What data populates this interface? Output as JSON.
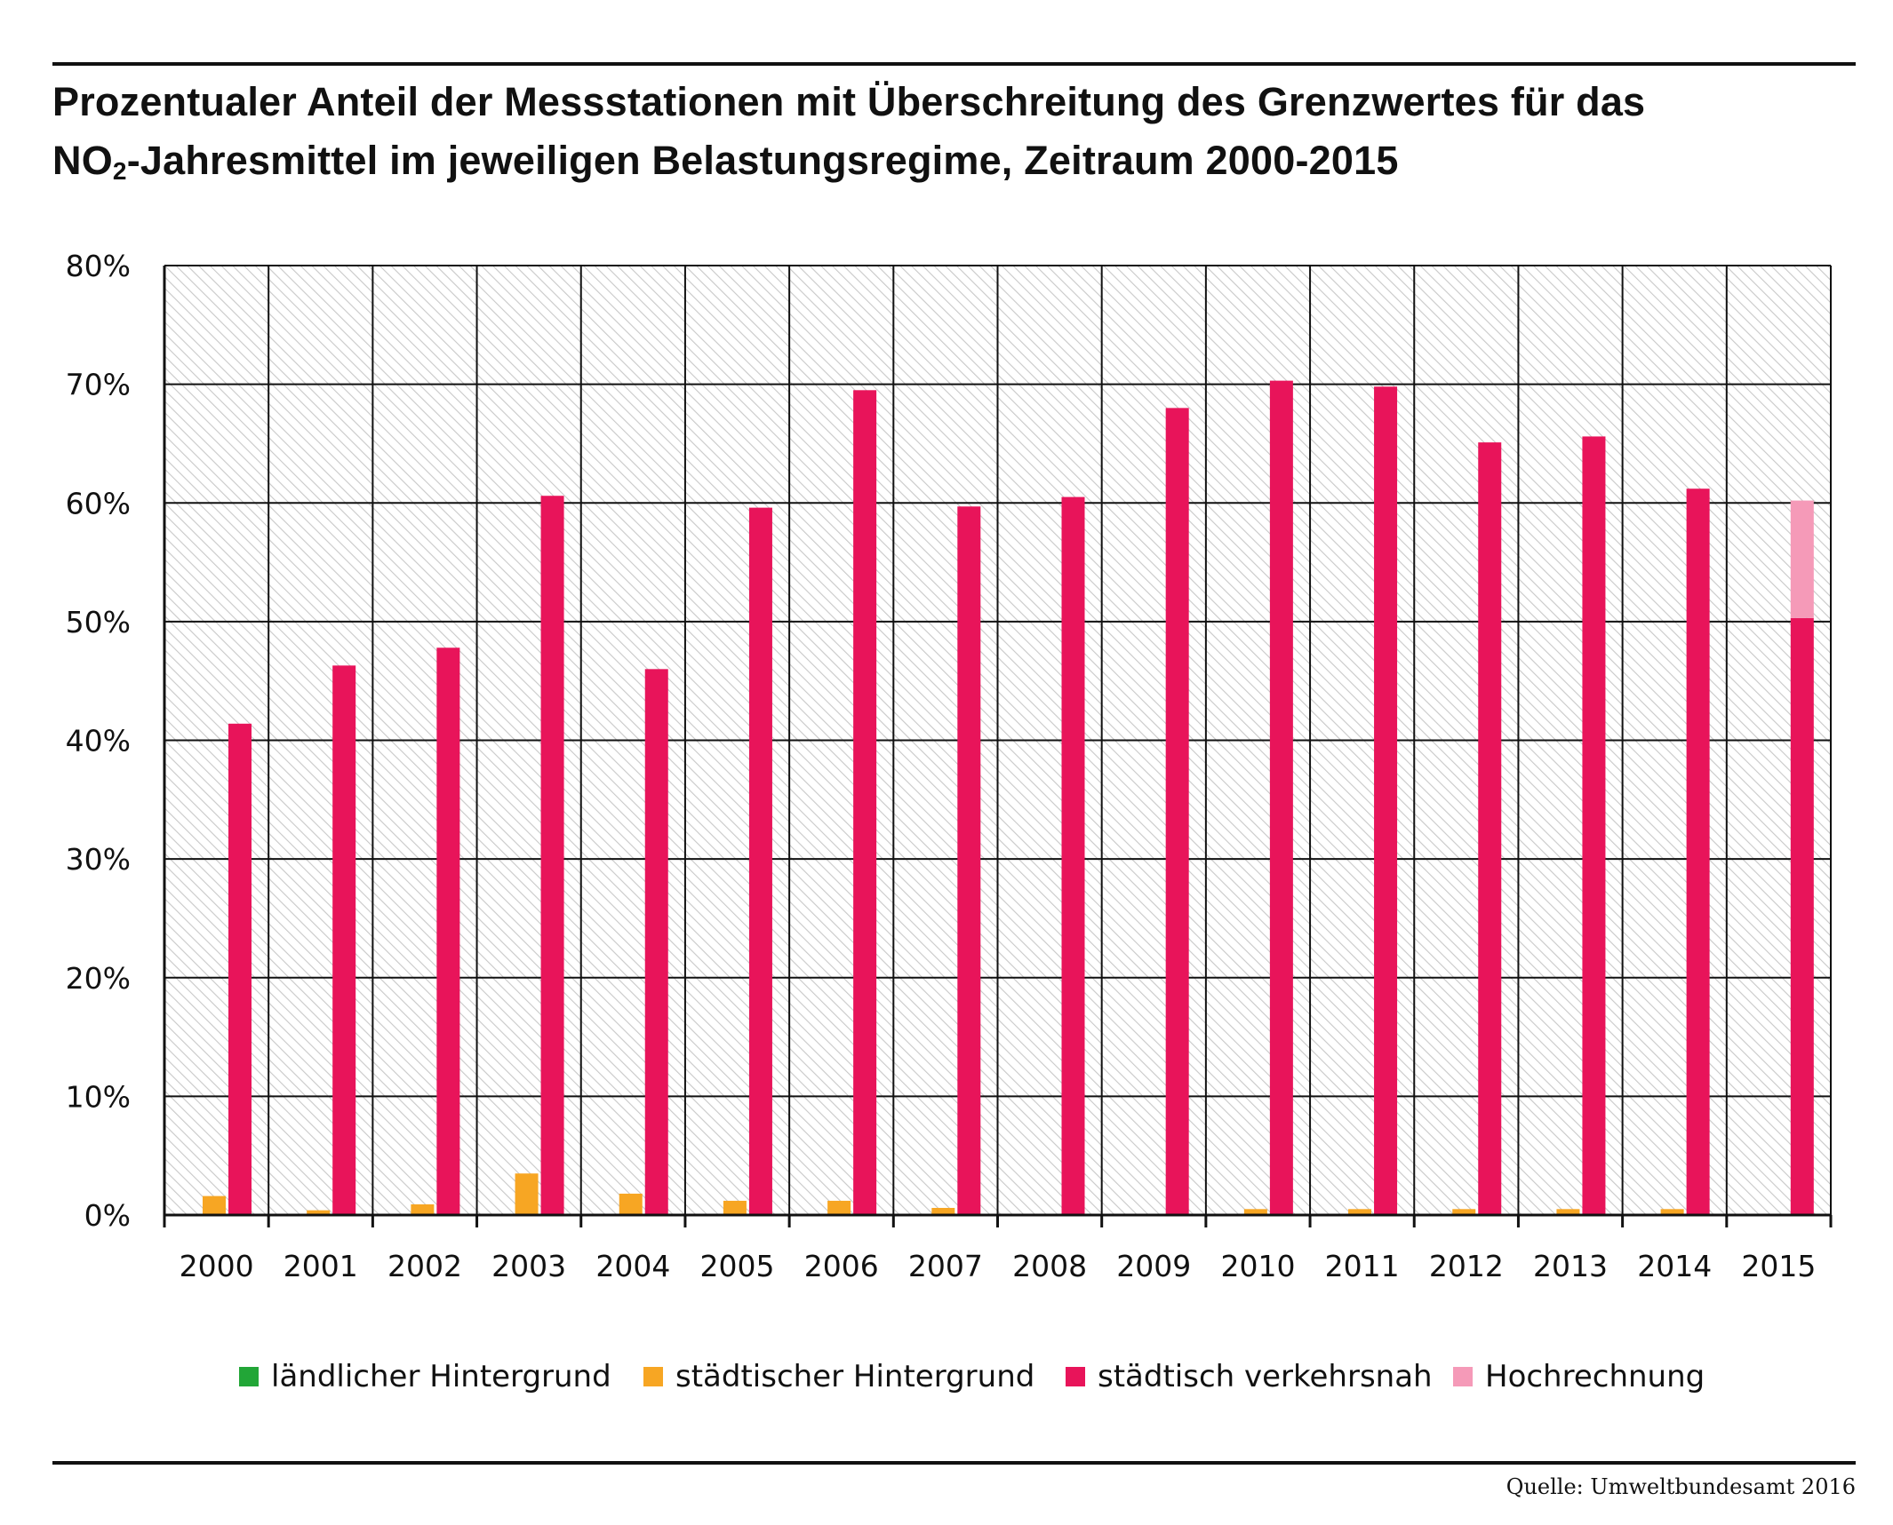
{
  "title": {
    "line1": "Prozentualer Anteil der Messstationen mit Überschreitung des Grenzwertes für das",
    "line2_pre": "NO",
    "line2_sub": "2",
    "line2_post": "-Jahresmittel im jeweiligen Belastungsregime, Zeitraum 2000-2015"
  },
  "source": "Quelle: Umweltbundesamt 2016",
  "colors": {
    "laendlich": "#22a637",
    "staedtisch_hintergrund": "#f7a623",
    "verkehrsnah": "#e8145a",
    "hochrechnung": "#f59ab8",
    "grid": "#111111",
    "hatch": "#c8c8c8"
  },
  "chart_data": {
    "type": "bar",
    "categories": [
      "2000",
      "2001",
      "2002",
      "2003",
      "2004",
      "2005",
      "2006",
      "2007",
      "2008",
      "2009",
      "2010",
      "2011",
      "2012",
      "2013",
      "2014",
      "2015"
    ],
    "y_ticks": [
      "0%",
      "10%",
      "20%",
      "30%",
      "40%",
      "50%",
      "60%",
      "70%",
      "80%"
    ],
    "ylim": [
      0,
      80
    ],
    "grid": true,
    "legend_position": "bottom",
    "series": [
      {
        "name": "ländlicher Hintergrund",
        "color_key": "laendlich",
        "values": [
          0,
          0,
          0,
          0,
          0,
          0,
          0,
          0,
          0,
          0,
          0,
          0,
          0,
          0,
          0,
          0
        ]
      },
      {
        "name": "städtischer Hintergrund",
        "color_key": "staedtisch_hintergrund",
        "values": [
          1.6,
          0.4,
          0.9,
          3.5,
          1.8,
          1.2,
          1.2,
          0.6,
          0,
          0,
          0.5,
          0.5,
          0.5,
          0.5,
          0.5,
          0
        ]
      },
      {
        "name": "städtisch verkehrsnah",
        "color_key": "verkehrsnah",
        "values": [
          41.4,
          46.3,
          47.8,
          60.6,
          46.0,
          59.6,
          69.5,
          59.7,
          60.5,
          68.0,
          70.3,
          69.8,
          65.1,
          65.6,
          61.2,
          50.3
        ]
      },
      {
        "name": "Hochrechnung",
        "color_key": "hochrechnung",
        "values": [
          0,
          0,
          0,
          0,
          0,
          0,
          0,
          0,
          0,
          0,
          0,
          0,
          0,
          0,
          0,
          9.9
        ]
      }
    ]
  }
}
